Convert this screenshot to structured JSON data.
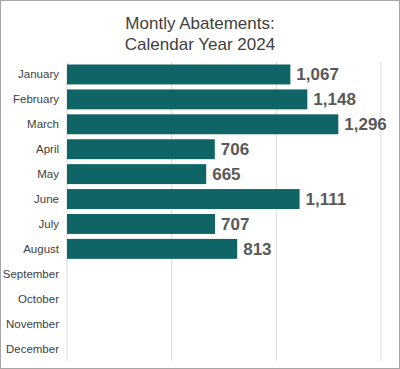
{
  "chart_data": {
    "type": "bar",
    "orientation": "horizontal",
    "title": "Montly Abatements:",
    "subtitle": "Calendar Year 2024",
    "categories": [
      "January",
      "February",
      "March",
      "April",
      "May",
      "June",
      "July",
      "August",
      "September",
      "October",
      "November",
      "December"
    ],
    "values": [
      1067,
      1148,
      1296,
      706,
      665,
      1111,
      707,
      813,
      null,
      null,
      null,
      null
    ],
    "value_labels": [
      "1,067",
      "1,148",
      "1,296",
      "706",
      "665",
      "1,111",
      "707",
      "813",
      null,
      null,
      null,
      null
    ],
    "data_labels": true,
    "color": "#0f6466",
    "xlim": [
      0,
      1500
    ],
    "xticks": [
      0,
      500,
      1000,
      1500
    ],
    "grid": true,
    "tick_labels": "y"
  }
}
